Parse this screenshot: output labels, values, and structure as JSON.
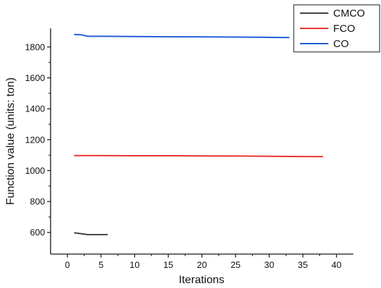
{
  "chart_data": {
    "type": "line",
    "title": "",
    "xlabel": "Iterations",
    "ylabel": "Function value (units: ton)",
    "xlim": [
      -2.5,
      42.5
    ],
    "ylim": [
      460,
      1920
    ],
    "xticks": [
      0,
      5,
      10,
      15,
      20,
      25,
      30,
      35,
      40
    ],
    "yticks": [
      600,
      800,
      1000,
      1200,
      1400,
      1600,
      1800
    ],
    "grid": false,
    "legend_position": "top-right",
    "series": [
      {
        "name": "CMCO",
        "color": "#404040",
        "x": [
          1,
          2,
          3,
          4,
          5,
          6
        ],
        "y": [
          598,
          592,
          586,
          586,
          586,
          586
        ]
      },
      {
        "name": "FCO",
        "color": "#e8302e",
        "x": [
          1,
          5,
          10,
          15,
          20,
          25,
          30,
          35,
          38
        ],
        "y": [
          1097,
          1097,
          1096,
          1096,
          1095,
          1094,
          1093,
          1091,
          1090
        ]
      },
      {
        "name": "CO",
        "color": "#1f5bd8",
        "x": [
          1,
          2,
          3,
          5,
          10,
          15,
          20,
          25,
          30,
          33
        ],
        "y": [
          1881,
          1879,
          1869,
          1869,
          1867,
          1866,
          1865,
          1864,
          1862,
          1861
        ]
      }
    ]
  }
}
